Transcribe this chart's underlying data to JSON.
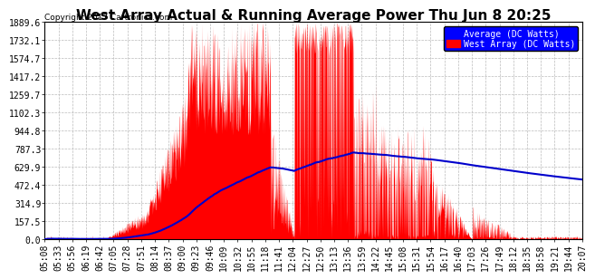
{
  "title": "West Array Actual & Running Average Power Thu Jun 8 20:25",
  "copyright": "Copyright 2017 Cartronics.com",
  "legend_labels": [
    "Average (DC Watts)",
    "West Array (DC Watts)"
  ],
  "ylabel_ticks": [
    0.0,
    157.5,
    314.9,
    472.4,
    629.9,
    787.3,
    944.8,
    1102.3,
    1259.7,
    1417.2,
    1574.7,
    1732.1,
    1889.6
  ],
  "x_labels": [
    "05:08",
    "05:33",
    "05:56",
    "06:19",
    "06:42",
    "07:05",
    "07:28",
    "07:51",
    "08:14",
    "08:37",
    "09:00",
    "09:23",
    "09:46",
    "10:09",
    "10:32",
    "10:55",
    "11:18",
    "11:41",
    "12:04",
    "12:27",
    "12:50",
    "13:13",
    "13:36",
    "13:59",
    "14:22",
    "14:45",
    "15:08",
    "15:31",
    "15:54",
    "16:17",
    "16:40",
    "17:03",
    "17:26",
    "17:49",
    "18:12",
    "18:35",
    "18:58",
    "19:21",
    "19:44",
    "20:07"
  ],
  "background_color": "#ffffff",
  "plot_bg_color": "#ffffff",
  "grid_color": "#bbbbbb",
  "fill_color": "#ff0000",
  "line_color_avg": "#0000cc",
  "title_fontsize": 11,
  "tick_fontsize": 7,
  "ymax": 1889.6,
  "ymin": 0.0
}
